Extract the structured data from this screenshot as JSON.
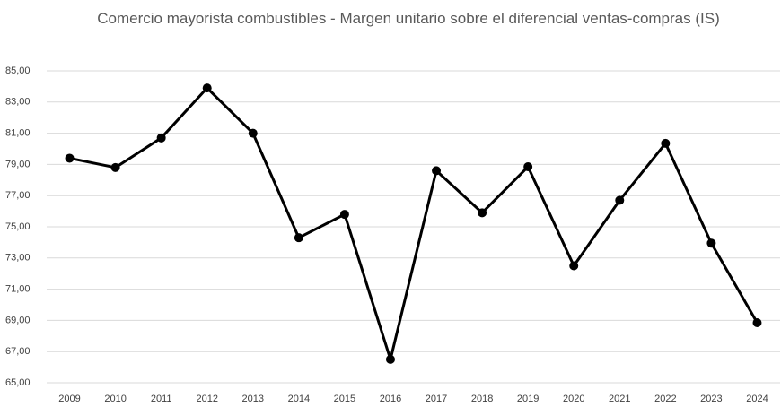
{
  "chart_data": {
    "type": "line",
    "title": "Comercio mayorista combustibles  - Margen unitario sobre el diferencial ventas-compras (IS)",
    "categories": [
      "2009",
      "2010",
      "2011",
      "2012",
      "2013",
      "2014",
      "2015",
      "2016",
      "2017",
      "2018",
      "2019",
      "2020",
      "2021",
      "2022",
      "2023",
      "2024"
    ],
    "series": [
      {
        "name": null,
        "color": "#000000",
        "values": [
          79.4,
          78.8,
          80.7,
          83.9,
          81.0,
          74.3,
          75.8,
          66.5,
          78.6,
          75.9,
          78.85,
          72.5,
          76.7,
          80.35,
          73.95,
          68.85
        ]
      }
    ],
    "ylim": [
      65,
      85
    ],
    "yticks": [
      {
        "value": 65,
        "label": "65,00"
      },
      {
        "value": 67,
        "label": "67,00"
      },
      {
        "value": 69,
        "label": "69,00"
      },
      {
        "value": 71,
        "label": "71,00"
      },
      {
        "value": 73,
        "label": "73,00"
      },
      {
        "value": 75,
        "label": "75,00"
      },
      {
        "value": 77,
        "label": "77,00"
      },
      {
        "value": 79,
        "label": "79,00"
      },
      {
        "value": 81,
        "label": "81,00"
      },
      {
        "value": 83,
        "label": "83,00"
      },
      {
        "value": 85,
        "label": "85,00"
      }
    ],
    "grid": true
  }
}
